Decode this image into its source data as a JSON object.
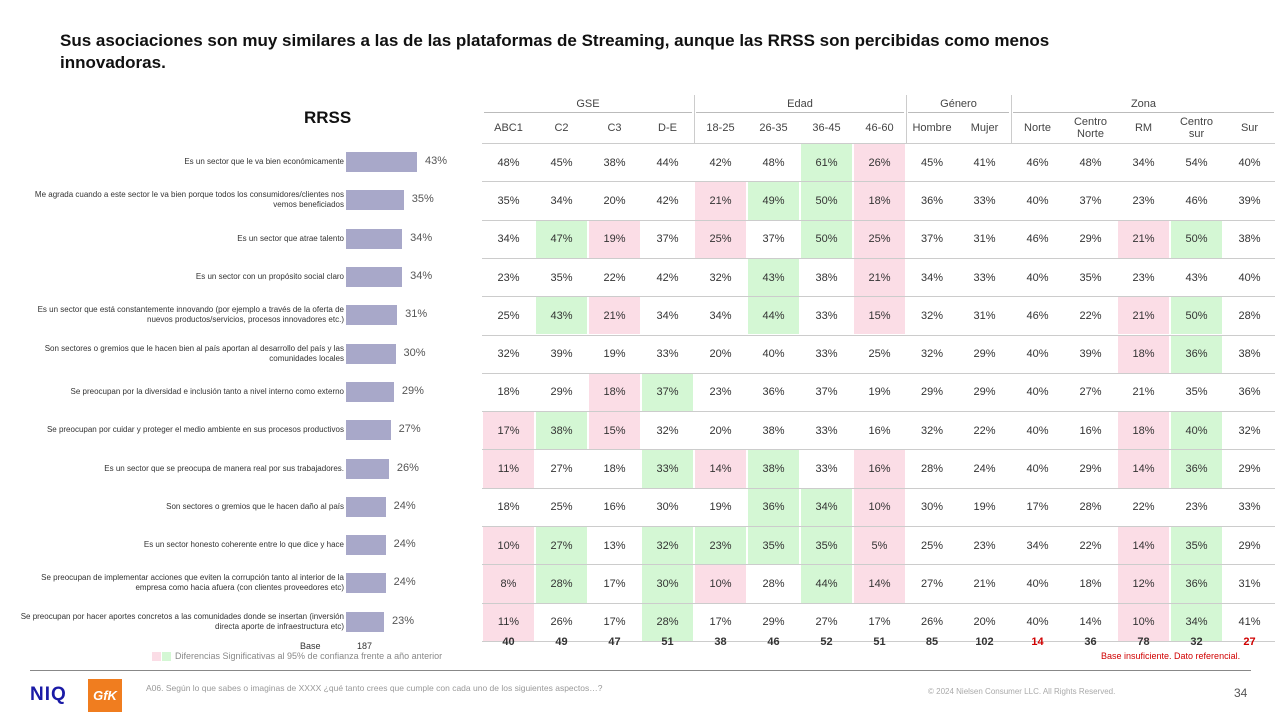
{
  "title": "Sus asociaciones son muy similares a las de las plataformas de Streaming, aunque las RRSS son percibidas como menos innovadoras.",
  "chart_data": {
    "type": "bar",
    "title": "RRSS",
    "orientation": "horizontal",
    "base_label": "Base",
    "base_value": "187",
    "categories": [
      "Es un sector que le va bien económicamente",
      "Me agrada cuando a este sector le va bien porque todos los consumidores/clientes nos vemos beneficiados",
      "Es un sector que atrae talento",
      "Es un sector con un propósito social claro",
      "Es un sector que está constantemente innovando (por ejemplo a través de la oferta de nuevos productos/servicios, procesos innovadores etc.)",
      "Son sectores o gremios que le hacen bien al país aportan al desarrollo del país y las comunidades locales",
      "Se preocupan por la diversidad e inclusión tanto a nivel interno como externo",
      "Se preocupan por cuidar y proteger el medio ambiente en sus procesos productivos",
      "Es un sector que se preocupa de manera real por sus trabajadores.",
      "Son sectores o gremios que le hacen daño al país",
      "Es un sector honesto coherente entre lo que dice y hace",
      "Se preocupan de implementar acciones que eviten la corrupción tanto al interior de la empresa como hacia afuera (con clientes proveedores etc)",
      "Se preocupan por hacer aportes concretos a las comunidades donde se insertan (inversión directa aporte de infraestructura etc)"
    ],
    "values": [
      43,
      35,
      34,
      34,
      31,
      30,
      29,
      27,
      26,
      24,
      24,
      24,
      23
    ],
    "value_labels": [
      "43%",
      "35%",
      "34%",
      "34%",
      "31%",
      "30%",
      "29%",
      "27%",
      "26%",
      "24%",
      "24%",
      "24%",
      "23%"
    ],
    "xlim": [
      0,
      100
    ]
  },
  "table": {
    "groups": [
      {
        "label": "GSE",
        "span": 4
      },
      {
        "label": "Edad",
        "span": 4
      },
      {
        "label": "Género",
        "span": 2
      },
      {
        "label": "Zona",
        "span": 5
      }
    ],
    "columns": [
      "ABC1",
      "C2",
      "C3",
      "D-E",
      "18-25",
      "26-35",
      "36-45",
      "46-60",
      "Hombre",
      "Mujer",
      "Norte",
      "Centro Norte",
      "RM",
      "Centro sur",
      "Sur"
    ],
    "rows": [
      {
        "values": [
          "48%",
          "45%",
          "38%",
          "44%",
          "42%",
          "48%",
          "61%",
          "26%",
          "45%",
          "41%",
          "46%",
          "48%",
          "34%",
          "54%",
          "40%"
        ],
        "flags": [
          "",
          "",
          "",
          "",
          "",
          "",
          "g",
          "p",
          "",
          "",
          "",
          "",
          "",
          "",
          ""
        ]
      },
      {
        "values": [
          "35%",
          "34%",
          "20%",
          "42%",
          "21%",
          "49%",
          "50%",
          "18%",
          "36%",
          "33%",
          "40%",
          "37%",
          "23%",
          "46%",
          "39%"
        ],
        "flags": [
          "",
          "",
          "",
          "",
          "p",
          "g",
          "g",
          "p",
          "",
          "",
          "",
          "",
          "",
          "",
          ""
        ]
      },
      {
        "values": [
          "34%",
          "47%",
          "19%",
          "37%",
          "25%",
          "37%",
          "50%",
          "25%",
          "37%",
          "31%",
          "46%",
          "29%",
          "21%",
          "50%",
          "38%"
        ],
        "flags": [
          "",
          "g",
          "p",
          "",
          "p",
          "",
          "g",
          "p",
          "",
          "",
          "",
          "",
          "p",
          "g",
          ""
        ]
      },
      {
        "values": [
          "23%",
          "35%",
          "22%",
          "42%",
          "32%",
          "43%",
          "38%",
          "21%",
          "34%",
          "33%",
          "40%",
          "35%",
          "23%",
          "43%",
          "40%"
        ],
        "flags": [
          "",
          "",
          "",
          "",
          "",
          "g",
          "",
          "p",
          "",
          "",
          "",
          "",
          "",
          "",
          ""
        ]
      },
      {
        "values": [
          "25%",
          "43%",
          "21%",
          "34%",
          "34%",
          "44%",
          "33%",
          "15%",
          "32%",
          "31%",
          "46%",
          "22%",
          "21%",
          "50%",
          "28%"
        ],
        "flags": [
          "",
          "g",
          "p",
          "",
          "",
          "g",
          "",
          "p",
          "",
          "",
          "",
          "",
          "p",
          "g",
          ""
        ]
      },
      {
        "values": [
          "32%",
          "39%",
          "19%",
          "33%",
          "20%",
          "40%",
          "33%",
          "25%",
          "32%",
          "29%",
          "40%",
          "39%",
          "18%",
          "36%",
          "38%"
        ],
        "flags": [
          "",
          "",
          "",
          "",
          "",
          "",
          "",
          "",
          "",
          "",
          "",
          "",
          "p",
          "g",
          ""
        ]
      },
      {
        "values": [
          "18%",
          "29%",
          "18%",
          "37%",
          "23%",
          "36%",
          "37%",
          "19%",
          "29%",
          "29%",
          "40%",
          "27%",
          "21%",
          "35%",
          "36%"
        ],
        "flags": [
          "",
          "",
          "p",
          "g",
          "",
          "",
          "",
          "",
          "",
          "",
          "",
          "",
          "",
          "",
          ""
        ]
      },
      {
        "values": [
          "17%",
          "38%",
          "15%",
          "32%",
          "20%",
          "38%",
          "33%",
          "16%",
          "32%",
          "22%",
          "40%",
          "16%",
          "18%",
          "40%",
          "32%"
        ],
        "flags": [
          "p",
          "g",
          "p",
          "",
          "",
          "",
          "",
          "",
          "",
          "",
          "",
          "",
          "p",
          "g",
          ""
        ]
      },
      {
        "values": [
          "11%",
          "27%",
          "18%",
          "33%",
          "14%",
          "38%",
          "33%",
          "16%",
          "28%",
          "24%",
          "40%",
          "29%",
          "14%",
          "36%",
          "29%"
        ],
        "flags": [
          "p",
          "",
          "",
          "g",
          "p",
          "g",
          "",
          "p",
          "",
          "",
          "",
          "",
          "p",
          "g",
          ""
        ]
      },
      {
        "values": [
          "18%",
          "25%",
          "16%",
          "30%",
          "19%",
          "36%",
          "34%",
          "10%",
          "30%",
          "19%",
          "17%",
          "28%",
          "22%",
          "23%",
          "33%"
        ],
        "flags": [
          "",
          "",
          "",
          "",
          "",
          "g",
          "g",
          "p",
          "",
          "",
          "",
          "",
          "",
          "",
          ""
        ]
      },
      {
        "values": [
          "10%",
          "27%",
          "13%",
          "32%",
          "23%",
          "35%",
          "35%",
          "5%",
          "25%",
          "23%",
          "34%",
          "22%",
          "14%",
          "35%",
          "29%"
        ],
        "flags": [
          "p",
          "g",
          "",
          "g",
          "g",
          "g",
          "g",
          "p",
          "",
          "",
          "",
          "",
          "p",
          "g",
          ""
        ]
      },
      {
        "values": [
          "8%",
          "28%",
          "17%",
          "30%",
          "10%",
          "28%",
          "44%",
          "14%",
          "27%",
          "21%",
          "40%",
          "18%",
          "12%",
          "36%",
          "31%"
        ],
        "flags": [
          "p",
          "g",
          "",
          "g",
          "p",
          "",
          "g",
          "p",
          "",
          "",
          "",
          "",
          "p",
          "g",
          ""
        ]
      },
      {
        "values": [
          "11%",
          "26%",
          "17%",
          "28%",
          "17%",
          "29%",
          "27%",
          "17%",
          "26%",
          "20%",
          "40%",
          "14%",
          "10%",
          "34%",
          "41%"
        ],
        "flags": [
          "p",
          "",
          "",
          "g",
          "",
          "",
          "",
          "",
          "",
          "",
          "",
          "",
          "p",
          "g",
          ""
        ]
      }
    ],
    "bases": [
      "40",
      "49",
      "47",
      "51",
      "38",
      "46",
      "52",
      "51",
      "85",
      "102",
      "14",
      "36",
      "78",
      "32",
      "27"
    ],
    "bases_red": [
      false,
      false,
      false,
      false,
      false,
      false,
      false,
      false,
      false,
      false,
      true,
      false,
      false,
      false,
      true
    ]
  },
  "legend_text": "Diferencias Significativas al 95% de confianza frente a año anterior",
  "insufficient_note": "Base insuficiente. Dato referencial.",
  "colors": {
    "bar": "#a8a8c9",
    "green": "#d4f7d4",
    "pink": "#fbdde6",
    "red": "#d00000"
  },
  "footer": {
    "question": "A06. Según lo que sabes o imaginas de XXXX ¿qué tanto crees que cumple con cada uno de los siguientes aspectos…?",
    "copyright": "© 2024 Nielsen Consumer LLC. All Rights Reserved.",
    "page_number": "34",
    "logo_niq": "NIQ",
    "logo_gfk": "GfK"
  }
}
